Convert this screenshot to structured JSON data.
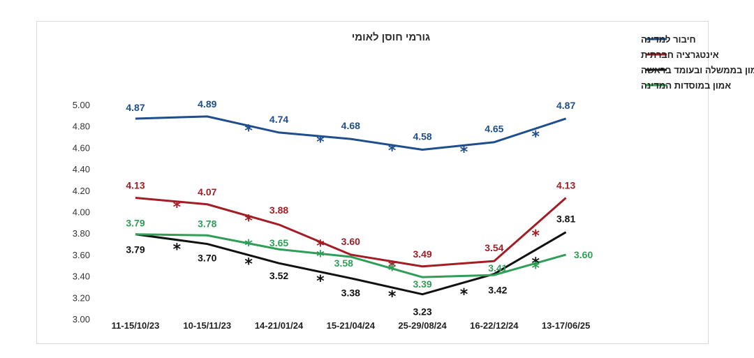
{
  "chart_data": {
    "type": "line",
    "title": "גורמי חוסן לאומי",
    "categories": [
      "11-15/10/23",
      "10-15/11/23",
      "14-21/01/24",
      "15-21/04/24",
      "25-29/08/24",
      "16-22/12/24",
      "13-17/06/25"
    ],
    "ylim": [
      3.0,
      5.0
    ],
    "yticks": [
      "3.00",
      "3.20",
      "3.40",
      "3.60",
      "3.80",
      "4.00",
      "4.20",
      "4.40",
      "4.60",
      "4.80",
      "5.00"
    ],
    "grid": false,
    "legend_position": "top-right",
    "series": [
      {
        "name": "חיבור למדינה",
        "color": "#1f4e8c",
        "values": [
          4.87,
          4.89,
          4.74,
          4.68,
          4.58,
          4.65,
          4.87
        ],
        "labels": [
          "4.87",
          "4.89",
          "4.74",
          "4.68",
          "4.58",
          "4.65",
          "4.87"
        ],
        "significance_after": [
          false,
          true,
          true,
          true,
          true,
          true
        ],
        "star": "*"
      },
      {
        "name": "אינטגרציה חברתית",
        "color": "#a31d24",
        "values": [
          4.13,
          4.07,
          3.88,
          3.6,
          3.49,
          3.54,
          4.13
        ],
        "labels": [
          "4.13",
          "4.07",
          "3.88",
          "3.60",
          "3.49",
          "3.54",
          "4.13"
        ],
        "significance_after": [
          true,
          true,
          true,
          true,
          false,
          true
        ],
        "star": "*"
      },
      {
        "name": "אמון בממשלה ובעומד בראשה",
        "color": "#111111",
        "values": [
          3.79,
          3.7,
          3.52,
          3.38,
          3.23,
          3.42,
          3.81
        ],
        "labels": [
          "3.79",
          "3.70",
          "3.52",
          "3.38",
          "3.23",
          "3.42",
          "3.81"
        ],
        "significance_after": [
          true,
          true,
          true,
          true,
          true,
          true
        ],
        "star": "*"
      },
      {
        "name": "אמון במוסדות המדינה",
        "color": "#2f9e57",
        "values": [
          3.79,
          3.78,
          3.65,
          3.58,
          3.39,
          3.41,
          3.6
        ],
        "labels": [
          "3.79",
          "3.78",
          "3.65",
          "3.58",
          "3.39",
          "3.41",
          "3.60"
        ],
        "significance_after": [
          false,
          true,
          true,
          true,
          false,
          true
        ],
        "star": "*"
      }
    ]
  }
}
